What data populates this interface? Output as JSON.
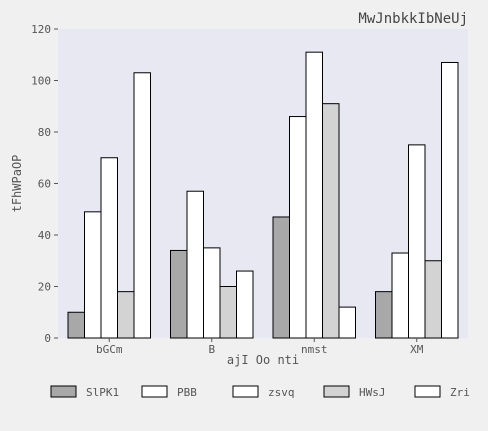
{
  "chart_data": {
    "type": "bar",
    "title": "MwJnbkkIbNeUj",
    "xlabel": "ajI Oo nti",
    "ylabel": "tFhWPaOP",
    "ylim": [
      0,
      120
    ],
    "yticks": [
      0,
      20,
      40,
      60,
      80,
      100,
      120
    ],
    "grid": false,
    "legend_position": "bottom",
    "categories": [
      "bGCm",
      "B",
      "nmst",
      "XM"
    ],
    "series": [
      {
        "name": "SlPK1",
        "color": "#a8a8a8",
        "values": [
          10,
          34,
          47,
          18
        ]
      },
      {
        "name": "PBB",
        "color": "#ffffff",
        "values": [
          49,
          57,
          86,
          33
        ]
      },
      {
        "name": "zsvq",
        "color": "#ffffff",
        "values": [
          70,
          35,
          111,
          75
        ]
      },
      {
        "name": "HWsJ",
        "color": "#d3d3d3",
        "values": [
          18,
          20,
          91,
          30
        ]
      },
      {
        "name": "Zri",
        "color": "#ffffff",
        "values": [
          103,
          26,
          12,
          107
        ]
      }
    ],
    "colors": {
      "plot_background": "#e8e8f2",
      "page_background": "#f0f0f0",
      "bar_stroke": "#000000"
    }
  }
}
